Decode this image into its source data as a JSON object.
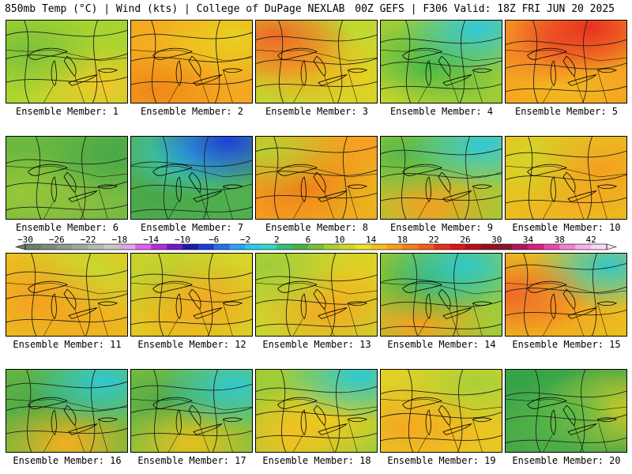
{
  "header": {
    "left": "850mb Temp (°C) | Wind (kts) | College of DuPage NEXLAB",
    "right": "00Z GEFS | F306 Valid: 18Z FRI JUN 20 2025"
  },
  "members": [
    {
      "label": "Ensemble Member: 1",
      "base": "#a8d430",
      "blobs": [
        [
          "#7bc13a",
          "15% 35%"
        ],
        [
          "#f0c828",
          "80% 80%"
        ],
        [
          "#b8d830",
          "50% 90%"
        ]
      ]
    },
    {
      "label": "Ensemble Member: 2",
      "base": "#f4a820",
      "blobs": [
        [
          "#f08818",
          "20% 85%"
        ],
        [
          "#e8d020",
          "85% 20%"
        ],
        [
          "#f4b420",
          "50% 40%"
        ]
      ]
    },
    {
      "label": "Ensemble Member: 3",
      "base": "#c0d830",
      "blobs": [
        [
          "#f06828",
          "15% 20%"
        ],
        [
          "#f4a020",
          "30% 50%"
        ],
        [
          "#e8d020",
          "80% 70%"
        ]
      ]
    },
    {
      "label": "Ensemble Member: 4",
      "base": "#9ccc38",
      "blobs": [
        [
          "#30c8d8",
          "80% 10%"
        ],
        [
          "#48b848",
          "40% 55%"
        ],
        [
          "#d8d828",
          "10% 85%"
        ]
      ]
    },
    {
      "label": "Ensemble Member: 5",
      "base": "#f4a020",
      "blobs": [
        [
          "#e83020",
          "70% 8%"
        ],
        [
          "#f06828",
          "40% 25%"
        ],
        [
          "#f4b820",
          "50% 85%"
        ]
      ]
    },
    {
      "label": "Ensemble Member: 6",
      "base": "#6cb840",
      "blobs": [
        [
          "#48a848",
          "90% 20%"
        ],
        [
          "#98c838",
          "10% 70%"
        ],
        [
          "#88c040",
          "60% 80%"
        ]
      ]
    },
    {
      "label": "Ensemble Member: 7",
      "base": "#50b050",
      "blobs": [
        [
          "#2040d8",
          "80% 5%"
        ],
        [
          "#30c8d8",
          "50% 20%"
        ],
        [
          "#48a848",
          "20% 75%"
        ]
      ]
    },
    {
      "label": "Ensemble Member: 8",
      "base": "#f4a020",
      "blobs": [
        [
          "#b8d030",
          "10% 15%"
        ],
        [
          "#f08018",
          "40% 60%"
        ],
        [
          "#e8c020",
          "80% 70%"
        ]
      ]
    },
    {
      "label": "Ensemble Member: 9",
      "base": "#a0cc38",
      "blobs": [
        [
          "#30c8d8",
          "85% 10%"
        ],
        [
          "#58b848",
          "20% 20%"
        ],
        [
          "#f4a020",
          "40% 85%"
        ]
      ]
    },
    {
      "label": "Ensemble Member: 10",
      "base": "#e8c020",
      "blobs": [
        [
          "#f4a020",
          "80% 40%"
        ],
        [
          "#d0d828",
          "30% 30%"
        ],
        [
          "#f4b020",
          "60% 80%"
        ]
      ]
    },
    {
      "label": "Ensemble Member: 11",
      "base": "#e8c020",
      "blobs": [
        [
          "#f4a020",
          "25% 55%"
        ],
        [
          "#c8d830",
          "70% 20%"
        ],
        [
          "#f0b020",
          "70% 85%"
        ]
      ]
    },
    {
      "label": "Ensemble Member: 12",
      "base": "#d8d428",
      "blobs": [
        [
          "#f4a820",
          "60% 60%"
        ],
        [
          "#b8d030",
          "30% 25%"
        ],
        [
          "#e8c020",
          "30% 85%"
        ]
      ]
    },
    {
      "label": "Ensemble Member: 13",
      "base": "#c8d830",
      "blobs": [
        [
          "#a0cc38",
          "10% 15%"
        ],
        [
          "#f4a820",
          "60% 70%"
        ],
        [
          "#e8cc20",
          "85% 30%"
        ]
      ]
    },
    {
      "label": "Ensemble Member: 14",
      "base": "#a0cc38",
      "blobs": [
        [
          "#30c8c8",
          "70% 15%"
        ],
        [
          "#48b048",
          "40% 30%"
        ],
        [
          "#f4a020",
          "30% 85%"
        ]
      ]
    },
    {
      "label": "Ensemble Member: 15",
      "base": "#e8c020",
      "blobs": [
        [
          "#f06828",
          "5% 50%"
        ],
        [
          "#30c8c8",
          "85% 15%"
        ],
        [
          "#f4a020",
          "40% 70%"
        ]
      ]
    },
    {
      "label": "Ensemble Member: 16",
      "base": "#6cb840",
      "blobs": [
        [
          "#30c8d0",
          "80% 15%"
        ],
        [
          "#f4b020",
          "50% 90%"
        ],
        [
          "#48a848",
          "30% 40%"
        ]
      ]
    },
    {
      "label": "Ensemble Member: 17",
      "base": "#78c040",
      "blobs": [
        [
          "#30c8d0",
          "85% 20%"
        ],
        [
          "#e8c020",
          "50% 90%"
        ],
        [
          "#50a848",
          "30% 40%"
        ]
      ]
    },
    {
      "label": "Ensemble Member: 18",
      "base": "#a0cc38",
      "blobs": [
        [
          "#30c8d0",
          "85% 8%"
        ],
        [
          "#f4c020",
          "30% 80%"
        ],
        [
          "#e8d020",
          "60% 60%"
        ]
      ]
    },
    {
      "label": "Ensemble Member: 19",
      "base": "#e0d028",
      "blobs": [
        [
          "#f4a820",
          "20% 70%"
        ],
        [
          "#a8d038",
          "80% 15%"
        ],
        [
          "#f0c020",
          "70% 80%"
        ]
      ]
    },
    {
      "label": "Ensemble Member: 20",
      "base": "#48a848",
      "blobs": [
        [
          "#58b848",
          "50% 55%"
        ],
        [
          "#f4d020",
          "90% 50%"
        ],
        [
          "#30a048",
          "20% 20%"
        ]
      ]
    }
  ],
  "colorbar": {
    "ticks": [
      "−30",
      "−26",
      "−22",
      "−18",
      "−14",
      "−10",
      "−6",
      "−2",
      "2",
      "6",
      "10",
      "14",
      "18",
      "22",
      "26",
      "30",
      "34",
      "38",
      "42"
    ],
    "colors": [
      "#6a7e6a",
      "#7c8c7c",
      "#8e9a8e",
      "#a0aaa0",
      "#b4bcb4",
      "#c8c8c8",
      "#d8a8e8",
      "#e060e8",
      "#b030d8",
      "#7018c8",
      "#2018a8",
      "#1840d8",
      "#2870e8",
      "#30a0f0",
      "#30c8e8",
      "#30d8c0",
      "#30c080",
      "#48b048",
      "#78c038",
      "#a8d030",
      "#d0d828",
      "#f0e020",
      "#f4c020",
      "#f4a020",
      "#f08018",
      "#f06020",
      "#e83018",
      "#d81818",
      "#b81018",
      "#981020",
      "#881828",
      "#b01860",
      "#d82080",
      "#e848a8",
      "#f080d0",
      "#f8b0e8",
      "#fcd8f4"
    ]
  }
}
